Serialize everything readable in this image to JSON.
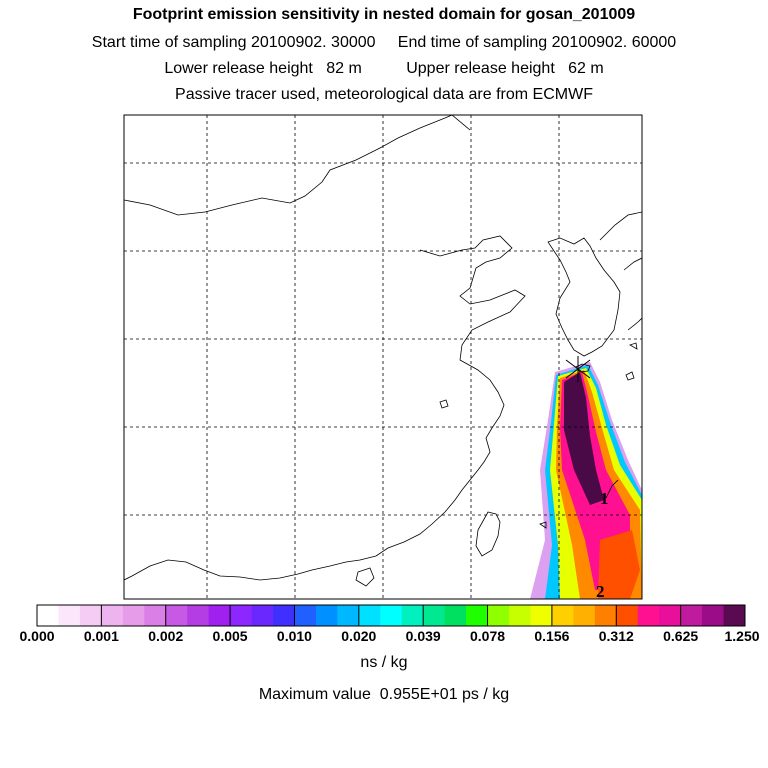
{
  "header": {
    "title": "Footprint emission sensitivity in nested domain for gosan_201009",
    "line2": "Start time of sampling 20100902. 30000     End time of sampling 20100902. 60000",
    "line3": "Lower release height   82 m          Upper release height   62 m",
    "line4": "Passive tracer used, meteorological data are from ECMWF"
  },
  "map": {
    "markers": [
      "1",
      "2"
    ]
  },
  "legend": {
    "colors": [
      "#ffffff",
      "#fbe6fb",
      "#f4ccf4",
      "#eeb4f0",
      "#e69ce8",
      "#d97fe6",
      "#c65ae4",
      "#b43de4",
      "#a020f0",
      "#8c28ff",
      "#6a28ff",
      "#4030ff",
      "#2060ff",
      "#0090ff",
      "#00b8ff",
      "#00e0ff",
      "#00ffff",
      "#00f0c0",
      "#00e890",
      "#00e060",
      "#20ff00",
      "#90ff00",
      "#c8ff00",
      "#f0ff00",
      "#ffd000",
      "#ffb000",
      "#ff8000",
      "#ff5000",
      "#ff1090",
      "#e8109a",
      "#c01a9e",
      "#9a0c88",
      "#5a0a50"
    ],
    "tick_labels": [
      "0.000",
      "0.001",
      "0.002",
      "0.005",
      "0.010",
      "0.020",
      "0.039",
      "0.078",
      "0.156",
      "0.312",
      "0.625",
      "1.250"
    ],
    "units": "ns / kg",
    "max_value": "Maximum value  0.955E+01 ps / kg"
  }
}
